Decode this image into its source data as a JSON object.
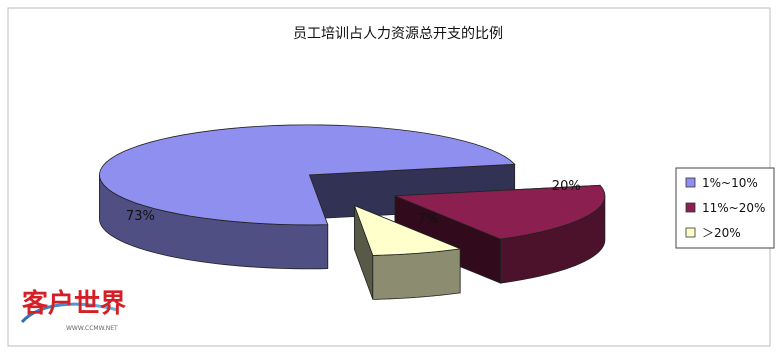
{
  "chart_data": {
    "type": "pie",
    "title": "员工培训占人力资源总开支的比例",
    "three_d": true,
    "slices": [
      {
        "label": "1%~10%",
        "value": 73,
        "value_label": "73%",
        "color": "#8f8ff0"
      },
      {
        "label": "11%~20%",
        "value": 20,
        "value_label": "20%",
        "color": "#8b1f4f"
      },
      {
        "label": "＞20%",
        "value": 7,
        "value_label": "7%",
        "color": "#ffffcc"
      }
    ],
    "legend": {
      "placement": "right",
      "entries": [
        "1%~10%",
        "11%~20%",
        "＞20%"
      ]
    }
  },
  "watermark": {
    "text": "客户世界",
    "subtext": "WWW.CCMW.NET"
  }
}
